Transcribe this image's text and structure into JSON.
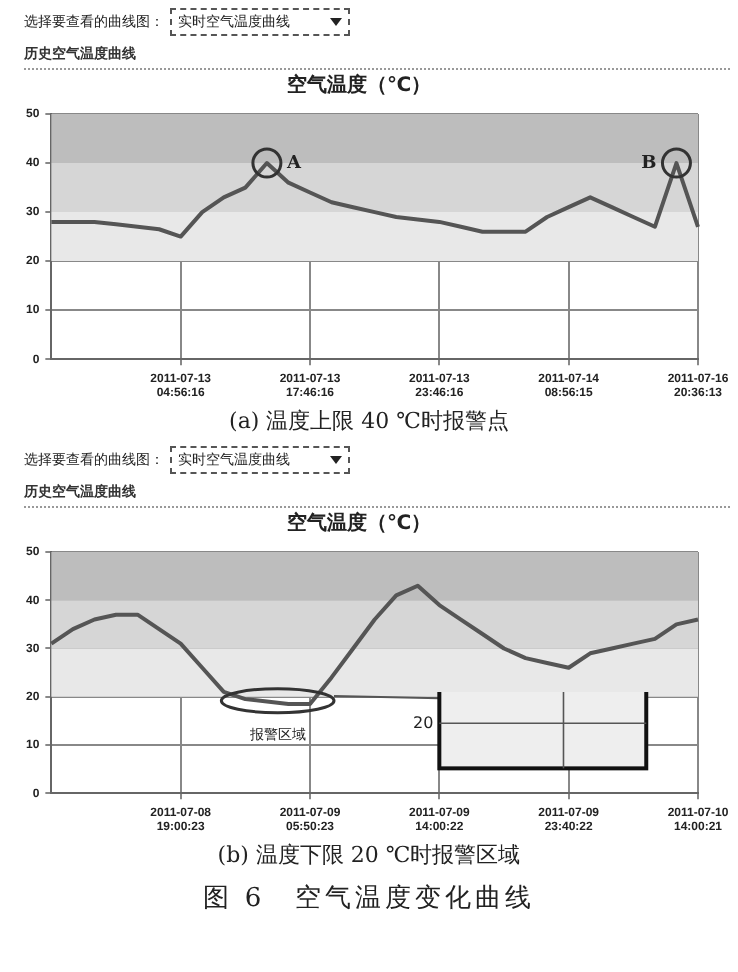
{
  "chart_data": [
    {
      "type": "line",
      "title": "空气温度（℃）",
      "categories": [
        null,
        null,
        null,
        null,
        null,
        null,
        "2011-07-13\n04:56:16",
        null,
        null,
        null,
        null,
        null,
        "2011-07-13\n17:46:16",
        null,
        null,
        null,
        null,
        null,
        "2011-07-13\n23:46:16",
        null,
        null,
        null,
        null,
        null,
        "2011-07-14\n08:56:15",
        null,
        null,
        null,
        null,
        null,
        "2011-07-16\n20:36:13"
      ],
      "series": [
        {
          "color": "#555555",
          "values": [
            28,
            28,
            28,
            27.5,
            27,
            26.5,
            25,
            30,
            33,
            35,
            40,
            36,
            34,
            32,
            31,
            30,
            29,
            28.5,
            28,
            27,
            26,
            26,
            26,
            29,
            31,
            33,
            31,
            29,
            27,
            40,
            27
          ]
        }
      ],
      "ylim": [
        0,
        50
      ],
      "yticks": [
        0,
        10,
        20,
        30,
        40,
        50
      ],
      "grid": true,
      "legend": false,
      "marker": "none",
      "line_style": "solid",
      "bands": [
        {
          "axis": "y",
          "from": 40,
          "to": 50,
          "color": "#bdbdbd"
        },
        {
          "axis": "y",
          "from": 30,
          "to": 40,
          "color": "#d6d6d6"
        },
        {
          "axis": "y",
          "from": 20,
          "to": 30,
          "color": "#e8e8e8"
        }
      ],
      "annotations": [
        "选择要查看的曲线图：",
        "实时空气温度曲线",
        "历史空气温度曲线",
        {
          "text": "A",
          "y": 40
        },
        {
          "text": "B",
          "y": 40
        },
        "(a) 温度上限 40 ℃时报警点"
      ]
    },
    {
      "type": "line",
      "title": "空气温度（℃）",
      "categories": [
        null,
        null,
        null,
        null,
        null,
        null,
        "2011-07-08\n19:00:23",
        null,
        null,
        null,
        null,
        null,
        "2011-07-09\n05:50:23",
        null,
        null,
        null,
        null,
        null,
        "2011-07-09\n14:00:22",
        null,
        null,
        null,
        null,
        null,
        "2011-07-09\n23:40:22",
        null,
        null,
        null,
        null,
        null,
        "2011-07-10\n14:00:21"
      ],
      "series": [
        {
          "color": "#555555",
          "values": [
            31,
            34,
            36,
            37,
            37,
            34,
            31,
            26,
            21,
            19.5,
            19,
            18.5,
            18.5,
            24,
            30,
            36,
            41,
            43,
            39,
            36,
            33,
            30,
            28,
            27,
            26,
            29,
            30,
            31,
            32,
            35,
            36
          ]
        }
      ],
      "ylim": [
        0,
        50
      ],
      "yticks": [
        0,
        10,
        20,
        30,
        40,
        50
      ],
      "grid": true,
      "legend": false,
      "marker": "none",
      "line_style": "solid",
      "bands": [
        {
          "axis": "y",
          "from": 40,
          "to": 50,
          "color": "#bdbdbd"
        },
        {
          "axis": "y",
          "from": 30,
          "to": 40,
          "color": "#d6d6d6"
        },
        {
          "axis": "y",
          "from": 20,
          "to": 30,
          "color": "#e8e8e8"
        }
      ],
      "annotations": [
        "选择要查看的曲线图：",
        "实时空气温度曲线",
        "历史空气温度曲线",
        {
          "text": "报警区域",
          "y": 20
        },
        {
          "text": "20",
          "y": 20
        },
        "(b) 温度下限 20 ℃时报警区域",
        "图 6　空气温度变化曲线"
      ]
    }
  ]
}
